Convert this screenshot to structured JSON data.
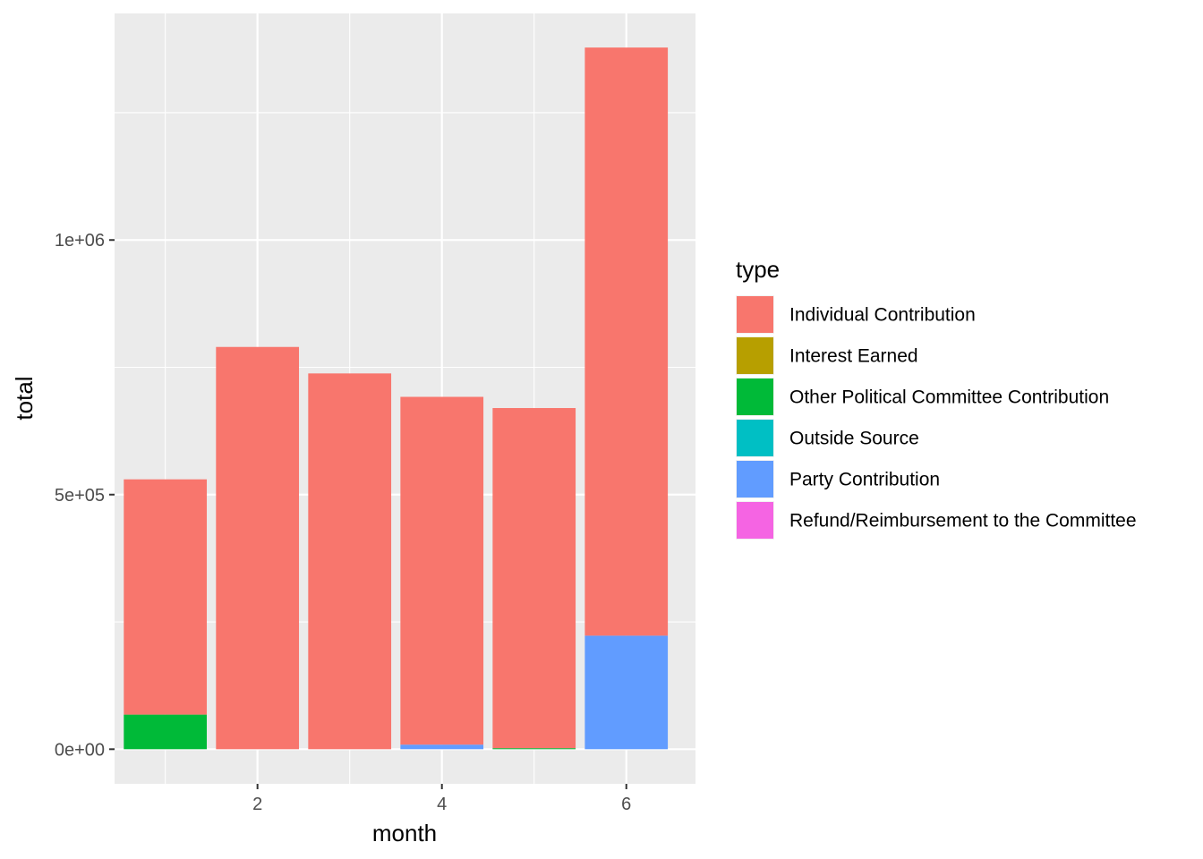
{
  "chart_data": {
    "type": "bar",
    "stacked": true,
    "x": [
      1,
      2,
      3,
      4,
      5,
      6
    ],
    "xlabel": "month",
    "ylabel": "total",
    "x_ticks": [
      {
        "value": 2,
        "label": "2"
      },
      {
        "value": 4,
        "label": "4"
      },
      {
        "value": 6,
        "label": "6"
      }
    ],
    "y_ticks": [
      {
        "value": 0,
        "label": "0e+00"
      },
      {
        "value": 500000,
        "label": "5e+05"
      },
      {
        "value": 1000000,
        "label": "1e+06"
      }
    ],
    "xlim": [
      0.45,
      6.75
    ],
    "ylim": [
      -68000,
      1445000
    ],
    "grid": true,
    "legend": {
      "title": "type",
      "position": "right"
    },
    "series": [
      {
        "name": "Individual Contribution",
        "color": "#F8766D",
        "values": [
          462000,
          790000,
          738000,
          683000,
          668000,
          1155000
        ]
      },
      {
        "name": "Interest Earned",
        "color": "#B79F00",
        "values": [
          0,
          0,
          0,
          0,
          0,
          0
        ]
      },
      {
        "name": "Other Political Committee Contribution",
        "color": "#00BA38",
        "values": [
          68000,
          0,
          0,
          0,
          2000,
          0
        ]
      },
      {
        "name": "Outside Source",
        "color": "#00BFC4",
        "values": [
          0,
          0,
          0,
          0,
          0,
          0
        ]
      },
      {
        "name": "Party Contribution",
        "color": "#619CFF",
        "values": [
          0,
          0,
          0,
          9000,
          0,
          223000
        ]
      },
      {
        "name": "Refund/Reimbursement to the Committee",
        "color": "#F564E3",
        "values": [
          0,
          0,
          0,
          0,
          0,
          0
        ]
      }
    ]
  }
}
